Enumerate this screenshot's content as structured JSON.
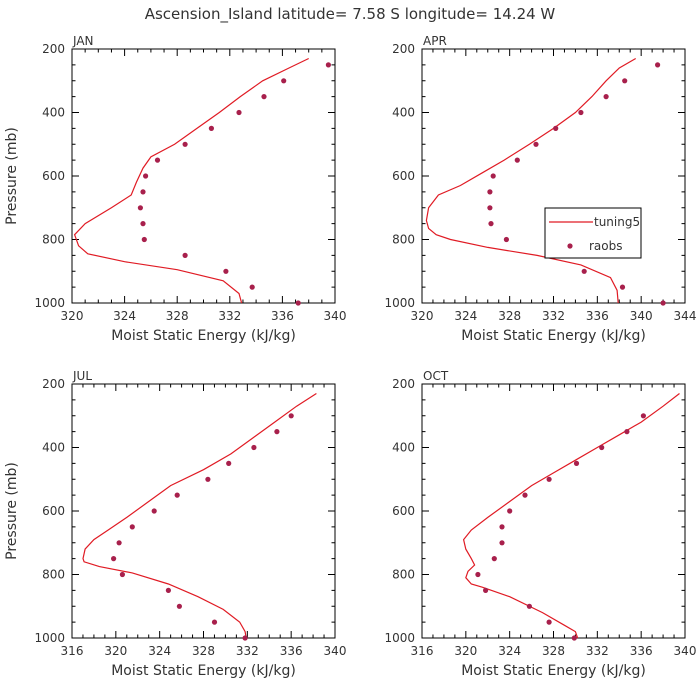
{
  "figure_title": "Ascension_Island  latitude= 7.58 S longitude= 14.24 W",
  "colors": {
    "model_line": "#e01b24",
    "obs_dot": "#a8204c",
    "axis": "#000000",
    "text": "#333333"
  },
  "chart_data": [
    {
      "type": "line",
      "title": "JAN",
      "xlabel": "Moist Static Energy (kJ/kg)",
      "ylabel": "Pressure (mb)",
      "xlim": [
        320,
        340
      ],
      "ylim": [
        1000,
        200
      ],
      "xticks": [
        320,
        324,
        328,
        332,
        336,
        340
      ],
      "yticks": [
        200,
        400,
        600,
        800,
        1000
      ],
      "series": [
        {
          "name": "tuning5",
          "kind": "line",
          "x": [
            338.0,
            336.5,
            334.5,
            332.8,
            331.2,
            329.5,
            327.8,
            326.0,
            325.4,
            324.9,
            324.5,
            323.0,
            321.0,
            320.2,
            320.5,
            321.2,
            324.0,
            328.0,
            331.5,
            332.7,
            332.9
          ],
          "y": [
            230,
            260,
            300,
            350,
            400,
            450,
            500,
            540,
            575,
            620,
            660,
            700,
            750,
            785,
            820,
            845,
            870,
            895,
            930,
            970,
            1000
          ]
        },
        {
          "name": "raobs",
          "kind": "scatter",
          "x": [
            339.5,
            336.1,
            334.6,
            332.7,
            330.6,
            328.6,
            326.5,
            325.6,
            325.4,
            325.2,
            325.4,
            325.5,
            328.6,
            331.7,
            333.7,
            337.2
          ],
          "y": [
            250,
            300,
            350,
            400,
            450,
            500,
            550,
            600,
            650,
            700,
            750,
            800,
            850,
            900,
            950,
            1000
          ]
        }
      ]
    },
    {
      "type": "line",
      "title": "APR",
      "xlabel": "Moist Static Energy (kJ/kg)",
      "ylabel": "",
      "xlim": [
        320,
        344
      ],
      "ylim": [
        1000,
        200
      ],
      "xticks": [
        320,
        324,
        328,
        332,
        336,
        340,
        344
      ],
      "yticks": [
        200,
        400,
        600,
        800,
        1000
      ],
      "series": [
        {
          "name": "tuning5",
          "kind": "line",
          "x": [
            339.5,
            338.0,
            336.8,
            335.5,
            334.0,
            332.0,
            329.8,
            327.5,
            325.5,
            323.5,
            321.5,
            320.6,
            320.4,
            320.6,
            321.3,
            322.6,
            326.0,
            330.5,
            334.5,
            337.2,
            337.8,
            337.9
          ],
          "y": [
            230,
            260,
            300,
            350,
            400,
            450,
            500,
            550,
            590,
            630,
            660,
            700,
            740,
            765,
            785,
            800,
            825,
            850,
            880,
            920,
            960,
            1000
          ]
        },
        {
          "name": "raobs",
          "kind": "scatter",
          "x": [
            341.5,
            338.5,
            336.8,
            334.5,
            332.2,
            330.4,
            328.7,
            326.5,
            326.2,
            326.2,
            326.3,
            327.7,
            331.5,
            334.8,
            338.3,
            342.0
          ],
          "y": [
            250,
            300,
            350,
            400,
            450,
            500,
            550,
            600,
            650,
            700,
            750,
            800,
            850,
            900,
            950,
            1000
          ]
        }
      ],
      "legend": {
        "placement": "right",
        "entries": [
          "tuning5",
          "raobs"
        ]
      }
    },
    {
      "type": "line",
      "title": "JUL",
      "xlabel": "Moist Static Energy (kJ/kg)",
      "ylabel": "Pressure (mb)",
      "xlim": [
        316,
        340
      ],
      "ylim": [
        1000,
        200
      ],
      "xticks": [
        316,
        320,
        324,
        328,
        332,
        336,
        340
      ],
      "yticks": [
        200,
        400,
        600,
        800,
        1000
      ],
      "series": [
        {
          "name": "tuning5",
          "kind": "line",
          "x": [
            338.3,
            336.5,
            334.5,
            332.5,
            330.5,
            328.0,
            325.0,
            323.0,
            321.0,
            319.3,
            318.0,
            317.2,
            317.0,
            317.1,
            318.5,
            321.5,
            324.8,
            327.5,
            329.8,
            331.3,
            331.8,
            331.9
          ],
          "y": [
            230,
            270,
            320,
            370,
            420,
            470,
            520,
            570,
            620,
            660,
            690,
            720,
            750,
            760,
            775,
            795,
            830,
            870,
            910,
            950,
            980,
            1000
          ]
        },
        {
          "name": "raobs",
          "kind": "scatter",
          "x": [
            336.0,
            334.7,
            332.6,
            330.3,
            328.4,
            325.6,
            323.5,
            321.5,
            320.3,
            319.8,
            320.6,
            324.8,
            325.8,
            329.0,
            331.8
          ],
          "y": [
            300,
            350,
            400,
            450,
            500,
            550,
            600,
            650,
            700,
            750,
            800,
            850,
            900,
            950,
            1000
          ]
        }
      ]
    },
    {
      "type": "line",
      "title": "OCT",
      "xlabel": "Moist Static Energy (kJ/kg)",
      "ylabel": "",
      "xlim": [
        316,
        340
      ],
      "ylim": [
        1000,
        200
      ],
      "xticks": [
        316,
        320,
        324,
        328,
        332,
        336,
        340
      ],
      "yticks": [
        200,
        400,
        600,
        800,
        1000
      ],
      "series": [
        {
          "name": "tuning5",
          "kind": "line",
          "x": [
            339.5,
            338.0,
            336.0,
            334.0,
            332.0,
            330.0,
            328.0,
            326.0,
            324.0,
            322.0,
            320.5,
            319.8,
            320.0,
            320.5,
            320.8,
            320.2,
            320.0,
            320.5,
            321.5,
            324.0,
            327.0,
            329.0,
            330.0,
            330.2
          ],
          "y": [
            230,
            270,
            320,
            360,
            400,
            440,
            480,
            520,
            570,
            620,
            660,
            690,
            720,
            750,
            770,
            790,
            810,
            830,
            840,
            870,
            920,
            960,
            980,
            1000
          ]
        },
        {
          "name": "raobs",
          "kind": "scatter",
          "x": [
            336.2,
            334.7,
            332.4,
            330.1,
            327.6,
            325.4,
            324.0,
            323.3,
            323.3,
            322.6,
            321.1,
            321.8,
            325.8,
            327.6,
            329.9
          ],
          "y": [
            300,
            350,
            400,
            450,
            500,
            550,
            600,
            650,
            700,
            750,
            800,
            850,
            900,
            950,
            1000
          ]
        }
      ]
    }
  ]
}
